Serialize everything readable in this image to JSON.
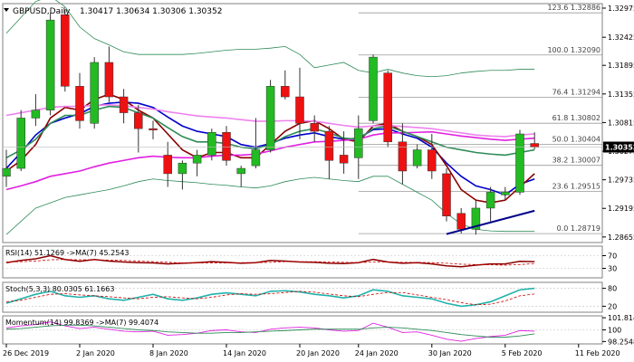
{
  "header": {
    "symbol": "GBPUSD,Daily",
    "ohlc": "1.30417 1.30634 1.30306 1.30352"
  },
  "chart_data": {
    "type": "candlestick",
    "price_axis": {
      "ticks": [
        "1.32975",
        "1.32425",
        "1.31895",
        "1.31355",
        "1.30815",
        "1.30275",
        "1.29735",
        "1.29195",
        "1.28655"
      ],
      "current_price": "1.30352",
      "ylim": [
        1.2855,
        1.3306
      ]
    },
    "x_ticks": [
      "26 Dec 2019",
      "2 Jan 2020",
      "8 Jan 2020",
      "14 Jan 2020",
      "20 Jan 2020",
      "24 Jan 2020",
      "30 Jan 2020",
      "5 Feb 2020",
      "11 Feb 2020"
    ],
    "x_tick_bar_index": [
      0,
      5,
      10,
      15,
      20,
      24,
      29,
      34,
      39
    ],
    "candles": [
      {
        "o": 1.298,
        "h": 1.303,
        "l": 1.296,
        "c": 1.2995
      },
      {
        "o": 1.2995,
        "h": 1.3105,
        "l": 1.299,
        "c": 1.309
      },
      {
        "o": 1.309,
        "h": 1.3135,
        "l": 1.3075,
        "c": 1.3105
      },
      {
        "o": 1.3105,
        "h": 1.3288,
        "l": 1.3095,
        "c": 1.3275
      },
      {
        "o": 1.3285,
        "h": 1.3295,
        "l": 1.314,
        "c": 1.315
      },
      {
        "o": 1.315,
        "h": 1.3175,
        "l": 1.307,
        "c": 1.3085
      },
      {
        "o": 1.308,
        "h": 1.3205,
        "l": 1.307,
        "c": 1.3195
      },
      {
        "o": 1.3195,
        "h": 1.3225,
        "l": 1.312,
        "c": 1.313
      },
      {
        "o": 1.313,
        "h": 1.3145,
        "l": 1.308,
        "c": 1.31
      },
      {
        "o": 1.31,
        "h": 1.3115,
        "l": 1.3025,
        "c": 1.307
      },
      {
        "o": 1.307,
        "h": 1.3085,
        "l": 1.305,
        "c": 1.3068
      },
      {
        "o": 1.302,
        "h": 1.3045,
        "l": 1.296,
        "c": 1.2985
      },
      {
        "o": 1.2985,
        "h": 1.301,
        "l": 1.2955,
        "c": 1.3005
      },
      {
        "o": 1.3005,
        "h": 1.303,
        "l": 1.298,
        "c": 1.302
      },
      {
        "o": 1.302,
        "h": 1.307,
        "l": 1.301,
        "c": 1.3063
      },
      {
        "o": 1.3063,
        "h": 1.3075,
        "l": 1.3,
        "c": 1.301
      },
      {
        "o": 1.2985,
        "h": 1.3,
        "l": 1.296,
        "c": 1.2995
      },
      {
        "o": 1.3,
        "h": 1.309,
        "l": 1.2995,
        "c": 1.303
      },
      {
        "o": 1.303,
        "h": 1.3162,
        "l": 1.3025,
        "c": 1.315
      },
      {
        "o": 1.315,
        "h": 1.318,
        "l": 1.3125,
        "c": 1.313
      },
      {
        "o": 1.313,
        "h": 1.3185,
        "l": 1.305,
        "c": 1.308
      },
      {
        "o": 1.308,
        "h": 1.3095,
        "l": 1.3045,
        "c": 1.3065
      },
      {
        "o": 1.3065,
        "h": 1.3075,
        "l": 1.2975,
        "c": 1.301
      },
      {
        "o": 1.302,
        "h": 1.3065,
        "l": 1.2985,
        "c": 1.3005
      },
      {
        "o": 1.3015,
        "h": 1.3095,
        "l": 1.2975,
        "c": 1.307
      },
      {
        "o": 1.3085,
        "h": 1.321,
        "l": 1.308,
        "c": 1.3205
      },
      {
        "o": 1.3175,
        "h": 1.318,
        "l": 1.3035,
        "c": 1.3045
      },
      {
        "o": 1.3045,
        "h": 1.308,
        "l": 1.2965,
        "c": 1.299
      },
      {
        "o": 1.3,
        "h": 1.304,
        "l": 1.2995,
        "c": 1.303
      },
      {
        "o": 1.303,
        "h": 1.306,
        "l": 1.2975,
        "c": 1.299
      },
      {
        "o": 1.2985,
        "h": 1.2995,
        "l": 1.2895,
        "c": 1.2905
      },
      {
        "o": 1.291,
        "h": 1.292,
        "l": 1.2872,
        "c": 1.288
      },
      {
        "o": 1.288,
        "h": 1.2935,
        "l": 1.287,
        "c": 1.292
      },
      {
        "o": 1.292,
        "h": 1.296,
        "l": 1.2895,
        "c": 1.295
      },
      {
        "o": 1.2945,
        "h": 1.296,
        "l": 1.2935,
        "c": 1.295
      },
      {
        "o": 1.295,
        "h": 1.3068,
        "l": 1.2945,
        "c": 1.306
      },
      {
        "o": 1.3042,
        "h": 1.3063,
        "l": 1.3031,
        "c": 1.3035
      }
    ],
    "moving_averages": [
      {
        "color": "#0000cc",
        "values": [
          1.2995,
          1.3025,
          1.3058,
          1.308,
          1.309,
          1.3098,
          1.3112,
          1.3118,
          1.312,
          1.3118,
          1.311,
          1.3092,
          1.3075,
          1.3065,
          1.306,
          1.3055,
          1.304,
          1.3035,
          1.3042,
          1.3052,
          1.3058,
          1.3062,
          1.3055,
          1.305,
          1.3052,
          1.3068,
          1.307,
          1.306,
          1.3052,
          1.3035,
          1.3005,
          1.298,
          1.2962,
          1.2955,
          1.2945,
          1.2965,
          1.2975
        ]
      },
      {
        "color": "#8b0000",
        "values": [
          1.299,
          1.301,
          1.304,
          1.309,
          1.311,
          1.3105,
          1.3125,
          1.3135,
          1.3125,
          1.3105,
          1.309,
          1.306,
          1.303,
          1.3015,
          1.3025,
          1.3025,
          1.3015,
          1.3015,
          1.304,
          1.3065,
          1.308,
          1.3085,
          1.307,
          1.305,
          1.3045,
          1.3075,
          1.308,
          1.3065,
          1.3055,
          1.304,
          1.3,
          1.2955,
          1.2935,
          1.293,
          1.2935,
          1.296,
          1.2985
        ]
      },
      {
        "color": "#e020e0",
        "values": [
          1.2955,
          1.2962,
          1.297,
          1.298,
          1.2985,
          1.299,
          1.2998,
          1.3005,
          1.301,
          1.3015,
          1.3018,
          1.3016,
          1.3015,
          1.3015,
          1.3018,
          1.302,
          1.302,
          1.3022,
          1.3028,
          1.3035,
          1.304,
          1.3045,
          1.3046,
          1.3048,
          1.305,
          1.3058,
          1.3062,
          1.3062,
          1.3063,
          1.3064,
          1.306,
          1.3056,
          1.3053,
          1.305,
          1.3048,
          1.305,
          1.3052
        ]
      },
      {
        "color": "#ee82ee",
        "values": [
          1.3095,
          1.31,
          1.3105,
          1.311,
          1.3112,
          1.3112,
          1.3114,
          1.3115,
          1.3113,
          1.311,
          1.3107,
          1.3102,
          1.3098,
          1.3094,
          1.3092,
          1.309,
          1.3087,
          1.3084,
          1.3084,
          1.3085,
          1.3085,
          1.3084,
          1.308,
          1.3076,
          1.3073,
          1.3075,
          1.3076,
          1.3074,
          1.3072,
          1.307,
          1.3066,
          1.3062,
          1.3058,
          1.3056,
          1.3055,
          1.3058,
          1.306
        ]
      },
      {
        "color": "#2e8b57",
        "values": [
          1.3015,
          1.303,
          1.305,
          1.308,
          1.3095,
          1.3095,
          1.3105,
          1.3112,
          1.311,
          1.31,
          1.309,
          1.3072,
          1.3055,
          1.3045,
          1.3045,
          1.3042,
          1.3035,
          1.3032,
          1.304,
          1.3055,
          1.3065,
          1.307,
          1.3062,
          1.3052,
          1.305,
          1.307,
          1.3075,
          1.3065,
          1.3055,
          1.3045,
          1.3035,
          1.303,
          1.3025,
          1.3022,
          1.302,
          1.3025,
          1.303
        ]
      }
    ],
    "bollinger": {
      "color": "#2e8b57",
      "upper": [
        1.325,
        1.328,
        1.331,
        1.332,
        1.33,
        1.3262,
        1.324,
        1.3228,
        1.3215,
        1.321,
        1.321,
        1.321,
        1.321,
        1.3212,
        1.3215,
        1.3218,
        1.322,
        1.322,
        1.3222,
        1.3225,
        1.321,
        1.3185,
        1.319,
        1.3195,
        1.318,
        1.3175,
        1.3182,
        1.3175,
        1.317,
        1.3168,
        1.317,
        1.3175,
        1.3178,
        1.318,
        1.318,
        1.3182,
        1.3182
      ],
      "lower": [
        1.287,
        1.2895,
        1.292,
        1.293,
        1.294,
        1.2945,
        1.295,
        1.2955,
        1.2962,
        1.297,
        1.2975,
        1.2972,
        1.297,
        1.2968,
        1.2965,
        1.2963,
        1.296,
        1.2958,
        1.2962,
        1.297,
        1.2975,
        1.2978,
        1.2975,
        1.2972,
        1.297,
        1.298,
        1.298,
        1.2965,
        1.295,
        1.2935,
        1.291,
        1.289,
        1.288,
        1.2877,
        1.2876,
        1.2876,
        1.2876
      ]
    },
    "trendline": {
      "color": "#00008b",
      "points": [
        {
          "bar": 30,
          "price": 1.2871
        },
        {
          "bar": 36,
          "price": 1.2915
        }
      ]
    },
    "fibonacci": [
      {
        "label": "123.6 1.32886",
        "price": 1.32886
      },
      {
        "label": "100.0 1.32090",
        "price": 1.3209
      },
      {
        "label": "76.4 1.31294",
        "price": 1.31294
      },
      {
        "label": "61.8 1.30802",
        "price": 1.30802
      },
      {
        "label": "50.0 1.30404",
        "price": 1.30404
      },
      {
        "label": "38.2 1.30007",
        "price": 1.30007
      },
      {
        "label": "23.6 1.29515",
        "price": 1.29515
      },
      {
        "label": "0.0 1.28719",
        "price": 1.28719
      }
    ],
    "indicators": [
      {
        "label": "RSI(14) 51.1269 ->MA(7) 45.2543",
        "axis": [
          "70",
          "30"
        ],
        "ylim": [
          0,
          100
        ]
      },
      {
        "label": "Stoch(5,3,3) 80.0305 61.1663",
        "axis": [
          "80",
          "20"
        ],
        "ylim": [
          0,
          100
        ]
      },
      {
        "label": "Momentum(14) 99.8369 ->MA(7) 99.4074",
        "axis": [
          "101.8141",
          "100",
          "98.2548"
        ],
        "ylim": [
          97.9,
          102.1
        ]
      }
    ],
    "colors": {
      "bull": "#22bb22",
      "bear": "#ee1111"
    }
  }
}
